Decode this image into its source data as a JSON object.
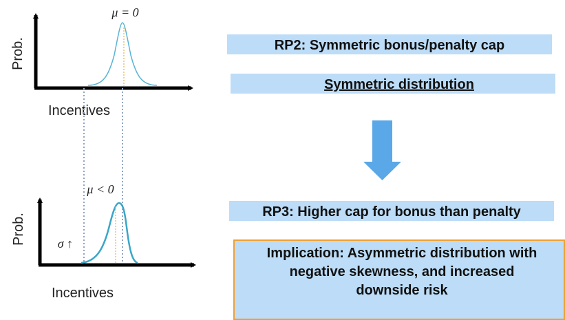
{
  "left": {
    "top_plot": {
      "mean_label": "μ = 0",
      "y_label": "Prob.",
      "x_label": "Incentives"
    },
    "bottom_plot": {
      "mean_label": "μ < 0",
      "sigma_label": "σ ↑",
      "y_label": "Prob.",
      "x_label": "Incentives"
    }
  },
  "right": {
    "rp2": "RP2: Symmetric bonus/penalty cap",
    "rp2_result": "Symmetric distribution",
    "rp3": "RP3: Higher cap for bonus than penalty",
    "implication": [
      "Implication: Asymmetric distribution with",
      "negative skewness, and increased",
      "downside risk"
    ]
  }
}
